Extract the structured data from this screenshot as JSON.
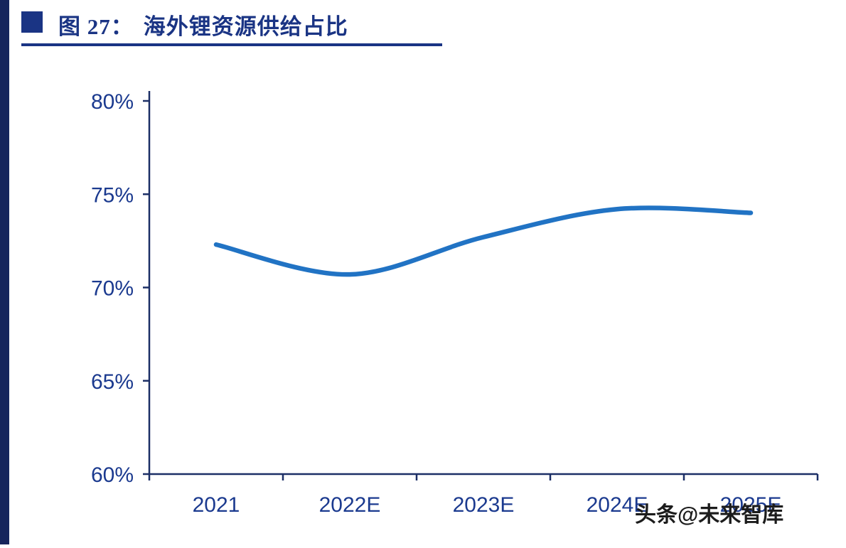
{
  "colors": {
    "navy": "#1a3484",
    "axis": "#1c2f66",
    "label": "#1b3a8f",
    "line_blue": "#2173c4",
    "left_bar": "#16255c",
    "watermark": "#1c1c1c"
  },
  "header": {
    "figure_label": "图 27：",
    "title": "海外锂资源供给占比"
  },
  "watermark": "头条@未来智库",
  "chart_data": {
    "type": "line",
    "title": "海外锂资源供给占比",
    "categories": [
      "2021",
      "2022E",
      "2023E",
      "2024E",
      "2025E"
    ],
    "series": [
      {
        "name": "海外锂资源供给占比",
        "values": [
          72.3,
          70.7,
          72.7,
          74.2,
          74.0
        ]
      }
    ],
    "xlabel": "",
    "ylabel": "",
    "ylim": [
      60,
      80
    ],
    "ytick_step": 5,
    "ytick_labels": [
      "60%",
      "65%",
      "70%",
      "75%",
      "80%"
    ],
    "grid": false,
    "legend": "none",
    "line_color": "#2173c4"
  }
}
